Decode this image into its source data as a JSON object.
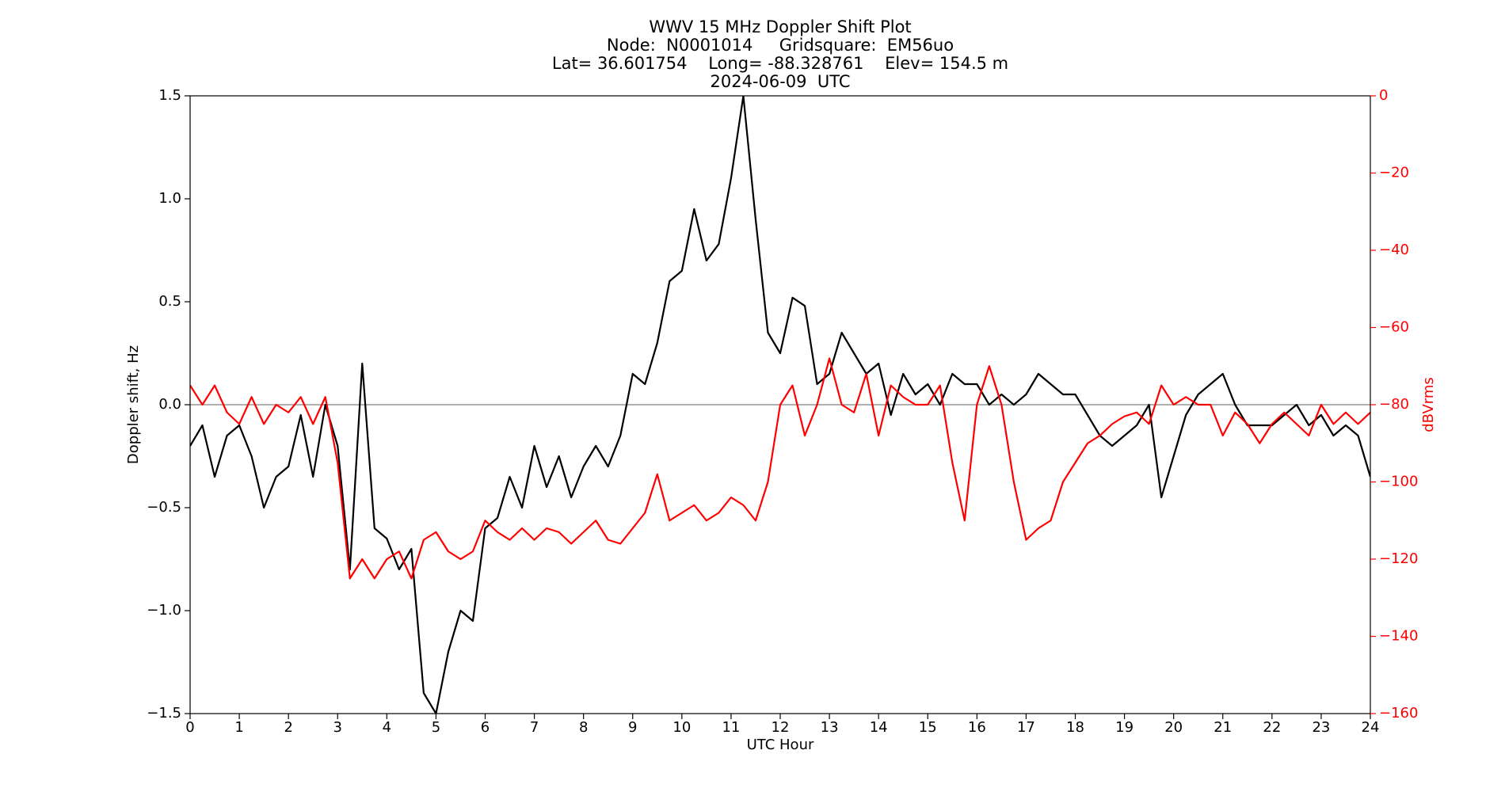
{
  "chart_data": {
    "type": "line",
    "title": [
      "WWV 15 MHz Doppler Shift Plot",
      "Node:  N0001014     Gridsquare:  EM56uo",
      "Lat= 36.601754    Long= -88.328761    Elev= 154.5 m",
      "2024-06-09  UTC"
    ],
    "xlabel": "UTC Hour",
    "ylabel": "Doppler shift, Hz",
    "y2label": "dBVrms",
    "x": [
      0,
      0.25,
      0.5,
      0.75,
      1,
      1.25,
      1.5,
      1.75,
      2,
      2.25,
      2.5,
      2.75,
      3,
      3.25,
      3.5,
      3.75,
      4,
      4.25,
      4.5,
      4.75,
      5,
      5.25,
      5.5,
      5.75,
      6,
      6.25,
      6.5,
      6.75,
      7,
      7.25,
      7.5,
      7.75,
      8,
      8.25,
      8.5,
      8.75,
      9,
      9.25,
      9.5,
      9.75,
      10,
      10.25,
      10.5,
      10.75,
      11,
      11.25,
      11.5,
      11.75,
      12,
      12.25,
      12.5,
      12.75,
      13,
      13.25,
      13.5,
      13.75,
      14,
      14.25,
      14.5,
      14.75,
      15,
      15.25,
      15.5,
      15.75,
      16,
      16.25,
      16.5,
      16.75,
      17,
      17.25,
      17.5,
      17.75,
      18,
      18.25,
      18.5,
      18.75,
      19,
      19.25,
      19.5,
      19.75,
      20,
      20.25,
      20.5,
      20.75,
      21,
      21.25,
      21.5,
      21.75,
      22,
      22.25,
      22.5,
      22.75,
      23,
      23.25,
      23.5,
      23.75,
      24
    ],
    "series": [
      {
        "color": "#000000",
        "values": [
          -0.2,
          -0.1,
          -0.35,
          -0.15,
          -0.1,
          -0.25,
          -0.5,
          -0.35,
          -0.3,
          -0.05,
          -0.35,
          0.0,
          -0.2,
          -0.8,
          0.2,
          -0.6,
          -0.65,
          -0.8,
          -0.7,
          -1.4,
          -1.5,
          -1.2,
          -1.0,
          -1.05,
          -0.6,
          -0.55,
          -0.35,
          -0.5,
          -0.2,
          -0.4,
          -0.25,
          -0.45,
          -0.3,
          -0.2,
          -0.3,
          -0.15,
          0.15,
          0.1,
          0.3,
          0.6,
          0.65,
          0.95,
          0.7,
          0.78,
          1.1,
          1.5,
          0.9,
          0.35,
          0.25,
          0.52,
          0.48,
          0.1,
          0.15,
          0.35,
          0.25,
          0.15,
          0.2,
          -0.05,
          0.15,
          0.05,
          0.1,
          0.0,
          0.15,
          0.1,
          0.1,
          0.0,
          0.05,
          0.0,
          0.05,
          0.15,
          0.1,
          0.05,
          0.05,
          -0.05,
          -0.15,
          -0.2,
          -0.15,
          -0.1,
          0.0,
          -0.45,
          -0.25,
          -0.05,
          0.05,
          0.1,
          0.15,
          0.0,
          -0.1,
          -0.1,
          -0.1,
          -0.05,
          0.0,
          -0.1,
          -0.05,
          -0.15,
          -0.1,
          -0.15,
          -0.35
        ]
      },
      {
        "color": "#ff0000",
        "axis": "y2",
        "values": [
          -75,
          -80,
          -75,
          -82,
          -85,
          -78,
          -85,
          -80,
          -82,
          -78,
          -85,
          -78,
          -95,
          -125,
          -120,
          -125,
          -120,
          -118,
          -125,
          -115,
          -113,
          -118,
          -120,
          -118,
          -110,
          -113,
          -115,
          -112,
          -115,
          -112,
          -113,
          -116,
          -113,
          -110,
          -115,
          -116,
          -112,
          -108,
          -98,
          -110,
          -108,
          -106,
          -110,
          -108,
          -104,
          -106,
          -110,
          -100,
          -80,
          -75,
          -88,
          -80,
          -68,
          -80,
          -82,
          -72,
          -88,
          -75,
          -78,
          -80,
          -80,
          -75,
          -95,
          -110,
          -80,
          -70,
          -80,
          -100,
          -115,
          -112,
          -110,
          -100,
          -95,
          -90,
          -88,
          -85,
          -83,
          -82,
          -85,
          -75,
          -80,
          -78,
          -80,
          -80,
          -88,
          -82,
          -85,
          -90,
          -85,
          -82,
          -85,
          -88,
          -80,
          -85,
          -82,
          -85,
          -82
        ]
      }
    ],
    "xlim": [
      0,
      24
    ],
    "xticks": [
      0,
      1,
      2,
      3,
      4,
      5,
      6,
      7,
      8,
      9,
      10,
      11,
      12,
      13,
      14,
      15,
      16,
      17,
      18,
      19,
      20,
      21,
      22,
      23,
      24
    ],
    "ylim": [
      -1.5,
      1.5
    ],
    "yticks": [
      {
        "value": -1.5,
        "label": "−1.5"
      },
      {
        "value": -1.0,
        "label": "−1.0"
      },
      {
        "value": -0.5,
        "label": "−0.5"
      },
      {
        "value": 0,
        "label": "0.0"
      },
      {
        "value": 0.5,
        "label": "0.5"
      },
      {
        "value": 1.0,
        "label": "1.0"
      },
      {
        "value": 1.5,
        "label": "1.5"
      }
    ],
    "y2lim": [
      -160,
      0
    ],
    "y2ticks": [
      {
        "value": -160,
        "label": "−160"
      },
      {
        "value": -140,
        "label": "−140"
      },
      {
        "value": -120,
        "label": "−120"
      },
      {
        "value": -100,
        "label": "−100"
      },
      {
        "value": -80,
        "label": "−80"
      },
      {
        "value": -60,
        "label": "−60"
      },
      {
        "value": -40,
        "label": "−40"
      },
      {
        "value": -20,
        "label": "−20"
      },
      0
    ],
    "y2color": "#ff0000"
  }
}
